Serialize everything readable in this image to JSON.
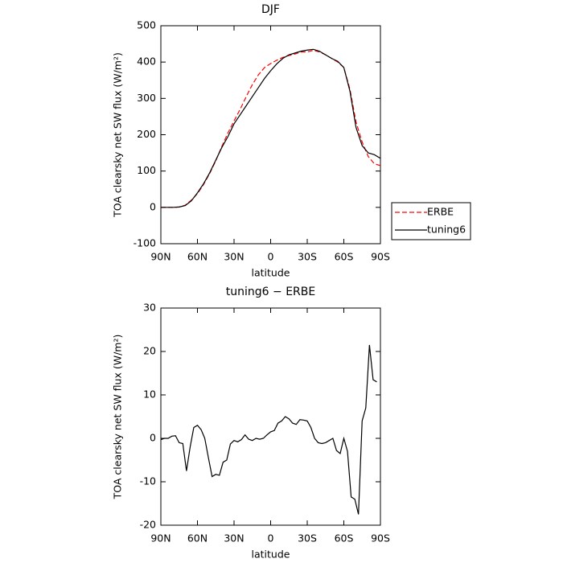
{
  "chart_data": [
    {
      "type": "line",
      "title": "DJF",
      "xlabel": "latitude",
      "ylabel": "TOA clearsky net SW flux (W/m²)",
      "x": [
        90,
        85,
        80,
        75,
        70,
        65,
        60,
        55,
        50,
        45,
        40,
        35,
        30,
        25,
        20,
        15,
        10,
        5,
        0,
        -5,
        -10,
        -15,
        -20,
        -25,
        -30,
        -35,
        -40,
        -45,
        -50,
        -55,
        -60,
        -65,
        -70,
        -75,
        -80,
        -85,
        -90
      ],
      "series": [
        {
          "name": "ERBE",
          "color": "#ff0000",
          "dash": true,
          "values": [
            0,
            0,
            0,
            1,
            6,
            20,
            38,
            63,
            93,
            128,
            168,
            205,
            238,
            270,
            305,
            338,
            365,
            385,
            396,
            405,
            413,
            418,
            422,
            428,
            428,
            432,
            428,
            420,
            410,
            400,
            385,
            325,
            235,
            180,
            140,
            120,
            115
          ]
        },
        {
          "name": "tuning6",
          "color": "#000000",
          "dash": false,
          "values": [
            0,
            0,
            0,
            1,
            5,
            18,
            40,
            65,
            95,
            130,
            165,
            195,
            230,
            255,
            280,
            305,
            330,
            355,
            376,
            395,
            410,
            420,
            425,
            430,
            433,
            435,
            430,
            420,
            410,
            402,
            385,
            320,
            220,
            170,
            150,
            145,
            135
          ]
        }
      ],
      "xlim": [
        90,
        -90
      ],
      "xticks": [
        {
          "value": 90,
          "label": "90N"
        },
        {
          "value": 60,
          "label": "60N"
        },
        {
          "value": 30,
          "label": "30N"
        },
        0,
        {
          "value": -30,
          "label": "30S"
        },
        {
          "value": -60,
          "label": "60S"
        },
        {
          "value": -90,
          "label": "90S"
        }
      ],
      "ylim": [
        -100,
        500
      ],
      "yticks": [
        -100,
        0,
        100,
        200,
        300,
        400,
        500
      ],
      "legend": "right"
    },
    {
      "type": "line",
      "title": "tuning6 − ERBE",
      "xlabel": "latitude",
      "ylabel": "TOA clearsky net SW flux (W/m²)",
      "x": [
        90,
        87,
        84,
        81,
        78,
        75,
        72,
        69,
        66,
        63,
        60,
        57,
        54,
        51,
        48,
        45,
        42,
        39,
        36,
        33,
        30,
        27,
        24,
        21,
        18,
        15,
        12,
        9,
        6,
        3,
        0,
        -3,
        -6,
        -9,
        -12,
        -15,
        -18,
        -21,
        -24,
        -27,
        -30,
        -33,
        -36,
        -39,
        -42,
        -45,
        -48,
        -51,
        -54,
        -57,
        -60,
        -63,
        -66,
        -69,
        -72,
        -75,
        -78,
        -81,
        -84,
        -87
      ],
      "series": [
        {
          "color": "#000000",
          "dash": false,
          "values": [
            -0.3,
            0,
            0,
            0.5,
            0.6,
            -1,
            -1.2,
            -7.5,
            -2,
            2.5,
            3,
            2,
            0,
            -4.5,
            -8.8,
            -8.3,
            -8.5,
            -5.5,
            -5,
            -1.3,
            -0.5,
            -0.8,
            -0.3,
            0.8,
            -0.2,
            -0.5,
            0,
            -0.2,
            0,
            0.8,
            1.5,
            1.8,
            3.5,
            4,
            5,
            4.5,
            3.5,
            3.2,
            4.3,
            4.2,
            4,
            2.5,
            0,
            -1,
            -1.2,
            -1,
            -0.5,
            0,
            -2.8,
            -3.5,
            0,
            -3,
            -13.5,
            -14,
            -17.5,
            4,
            7,
            21.5,
            13.5,
            13
          ]
        }
      ],
      "xlim": [
        90,
        -90
      ],
      "xticks": [
        {
          "value": 90,
          "label": "90N"
        },
        {
          "value": 60,
          "label": "60N"
        },
        {
          "value": 30,
          "label": "30N"
        },
        0,
        {
          "value": -30,
          "label": "30S"
        },
        {
          "value": -60,
          "label": "60S"
        },
        {
          "value": -90,
          "label": "90S"
        }
      ],
      "ylim": [
        -20,
        30
      ],
      "yticks": [
        -20,
        -10,
        0,
        10,
        20,
        30
      ]
    }
  ]
}
